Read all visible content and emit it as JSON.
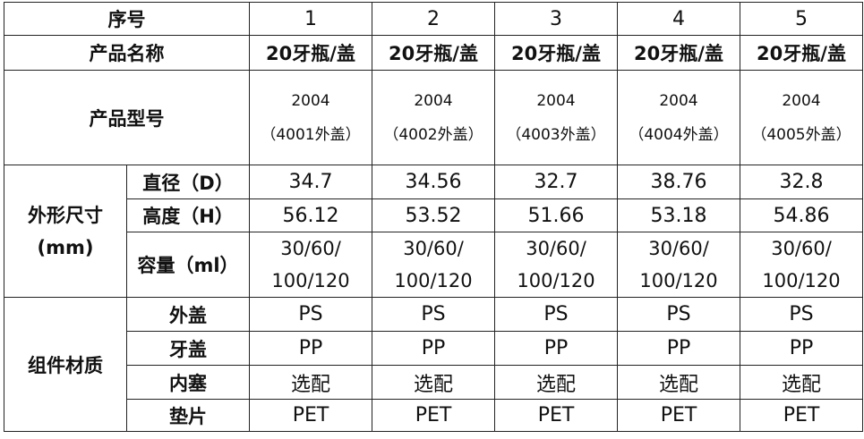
{
  "table": {
    "header_label": "序号",
    "columns": [
      "1",
      "2",
      "3",
      "4",
      "5"
    ],
    "product_name_label": "产品名称",
    "product_names": [
      "20牙瓶/盖",
      "20牙瓶/盖",
      "20牙瓶/盖",
      "20牙瓶/盖",
      "20牙瓶/盖"
    ],
    "model_label": "产品型号",
    "models": [
      {
        "line1": "2004",
        "line2": "（4001外盖）"
      },
      {
        "line1": "2004",
        "line2": "（4002外盖）"
      },
      {
        "line1": "2004",
        "line2": "（4003外盖）"
      },
      {
        "line1": "2004",
        "line2": "（4004外盖）"
      },
      {
        "line1": "2004",
        "line2": "（4005外盖）"
      }
    ],
    "dimensions": {
      "group_line1": "外形尺寸",
      "group_line2": "(mm)",
      "diameter_label": "直径（D）",
      "diameter": [
        "34.7",
        "34.56",
        "32.7",
        "38.76",
        "32.8"
      ],
      "height_label": "高度（H）",
      "height": [
        "56.12",
        "53.52",
        "51.66",
        "53.18",
        "54.86"
      ],
      "capacity_label": "容量（ml）",
      "capacity": [
        {
          "line1": "30/60/",
          "line2": "100/120"
        },
        {
          "line1": "30/60/",
          "line2": "100/120"
        },
        {
          "line1": "30/60/",
          "line2": "100/120"
        },
        {
          "line1": "30/60/",
          "line2": "100/120"
        },
        {
          "line1": "30/60/",
          "line2": "100/120"
        }
      ]
    },
    "materials": {
      "group_label": "组件材质",
      "outer_cap_label": "外盖",
      "outer_cap": [
        "PS",
        "PS",
        "PS",
        "PS",
        "PS"
      ],
      "thread_cap_label": "牙盖",
      "thread_cap": [
        "PP",
        "PP",
        "PP",
        "PP",
        "PP"
      ],
      "inner_plug_label": "内塞",
      "inner_plug": [
        "选配",
        "选配",
        "选配",
        "选配",
        "选配"
      ],
      "gasket_label": "垫片",
      "gasket": [
        "PET",
        "PET",
        "PET",
        "PET",
        "PET"
      ]
    }
  }
}
